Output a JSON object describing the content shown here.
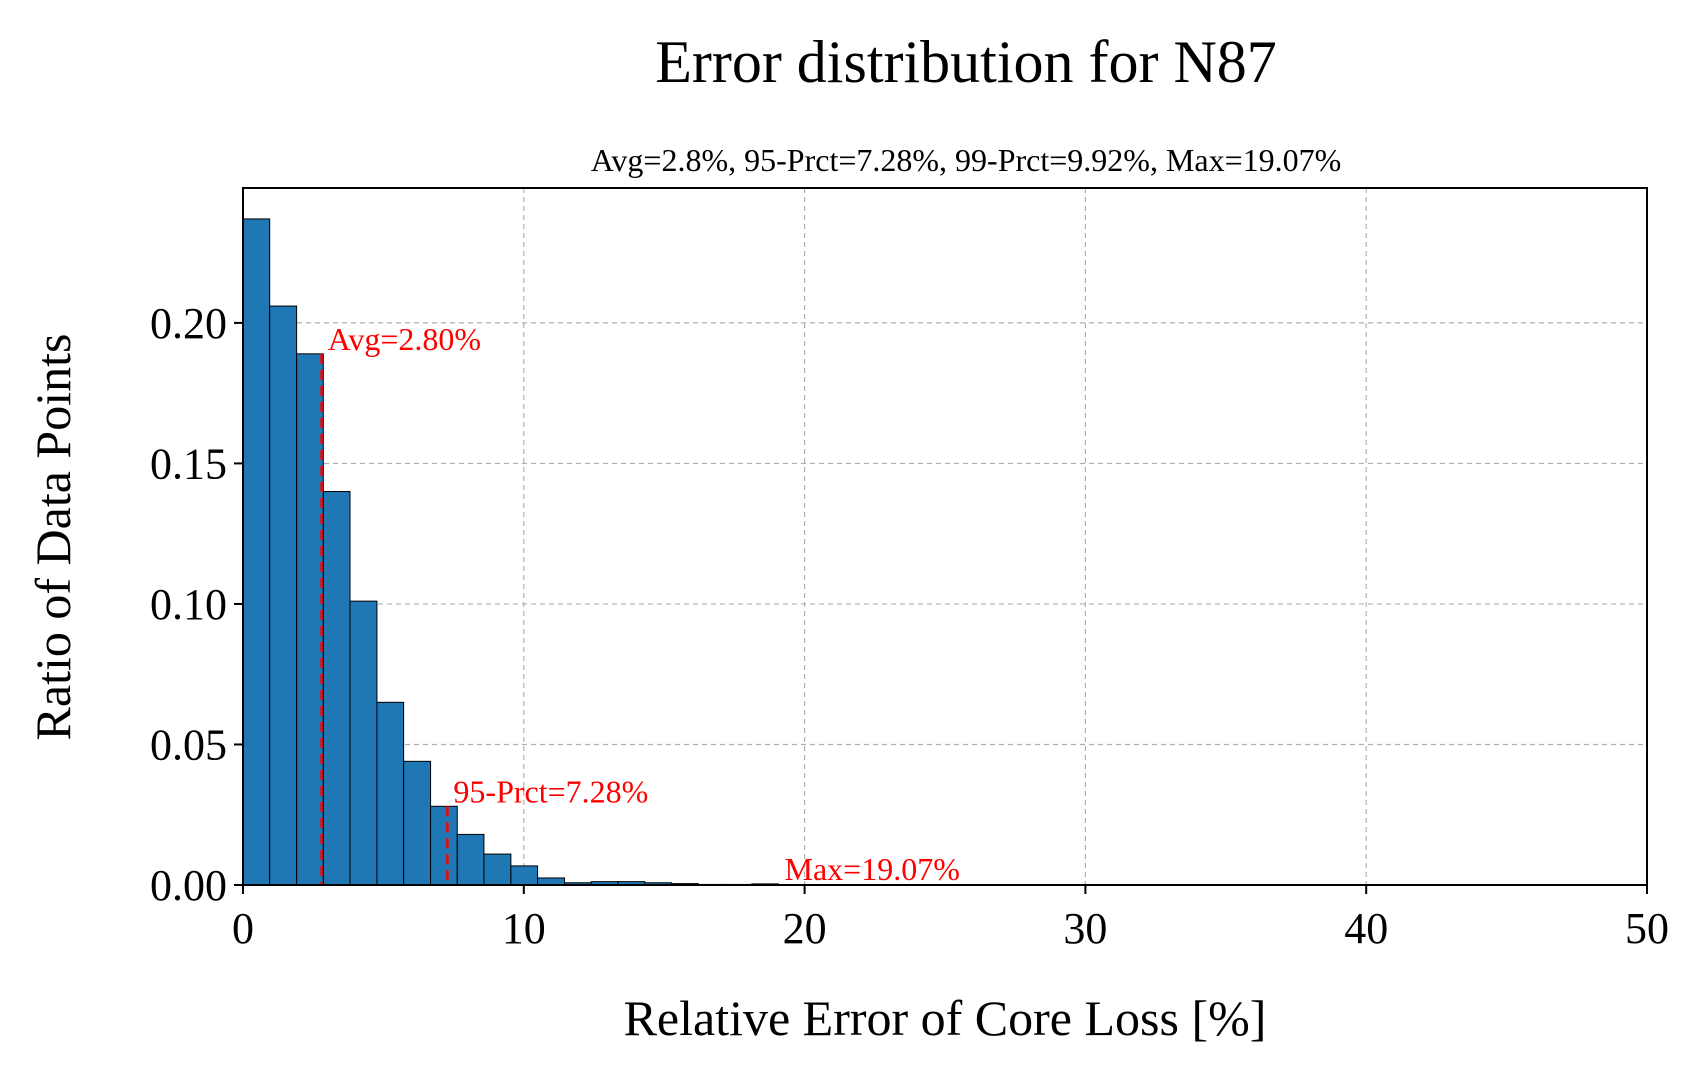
{
  "chart_data": {
    "type": "bar",
    "title": "Error distribution for N87",
    "subtitle": "Avg=2.8%, 95-Prct=7.28%, 99-Prct=9.92%, Max=19.07%",
    "xlabel": "Relative Error of Core Loss [%]",
    "ylabel": "Ratio of Data Points",
    "xlim": [
      0,
      50
    ],
    "ylim": [
      0,
      0.248
    ],
    "xticks": [
      0,
      10,
      20,
      30,
      40,
      50
    ],
    "xtick_labels": [
      "0",
      "10",
      "20",
      "30",
      "40",
      "50"
    ],
    "yticks": [
      0,
      0.05,
      0.1,
      0.15,
      0.2
    ],
    "ytick_labels": [
      "0.00",
      "0.05",
      "0.10",
      "0.15",
      "0.20"
    ],
    "grid": true,
    "bar_color": "#1f77b4",
    "bin_width": 0.95,
    "bins": [
      {
        "x0": 0.0,
        "x1": 0.95,
        "value": 0.237
      },
      {
        "x0": 0.95,
        "x1": 1.91,
        "value": 0.206
      },
      {
        "x0": 1.91,
        "x1": 2.86,
        "value": 0.189
      },
      {
        "x0": 2.86,
        "x1": 3.81,
        "value": 0.14
      },
      {
        "x0": 3.81,
        "x1": 4.77,
        "value": 0.101
      },
      {
        "x0": 4.77,
        "x1": 5.72,
        "value": 0.065
      },
      {
        "x0": 5.72,
        "x1": 6.68,
        "value": 0.044
      },
      {
        "x0": 6.68,
        "x1": 7.63,
        "value": 0.028
      },
      {
        "x0": 7.63,
        "x1": 8.58,
        "value": 0.018
      },
      {
        "x0": 8.58,
        "x1": 9.54,
        "value": 0.011
      },
      {
        "x0": 9.54,
        "x1": 10.49,
        "value": 0.0068
      },
      {
        "x0": 10.49,
        "x1": 11.45,
        "value": 0.0025
      },
      {
        "x0": 11.45,
        "x1": 12.4,
        "value": 0.0008
      },
      {
        "x0": 12.4,
        "x1": 13.35,
        "value": 0.0012
      },
      {
        "x0": 13.35,
        "x1": 14.31,
        "value": 0.0012
      },
      {
        "x0": 14.31,
        "x1": 15.26,
        "value": 0.0008
      },
      {
        "x0": 15.26,
        "x1": 16.21,
        "value": 0.0005
      },
      {
        "x0": 16.21,
        "x1": 17.17,
        "value": 0.0002
      },
      {
        "x0": 17.17,
        "x1": 18.12,
        "value": 0.0002
      },
      {
        "x0": 18.12,
        "x1": 19.07,
        "value": 0.0004
      }
    ],
    "annotations": [
      {
        "label": "Avg=2.80%",
        "x": 2.8,
        "color": "#ff0000",
        "line": true
      },
      {
        "label": "95-Prct=7.28%",
        "x": 7.28,
        "color": "#ff0000",
        "line": true
      },
      {
        "label": "Max=19.07%",
        "x": 19.07,
        "color": "#ff0000",
        "line": false
      }
    ]
  }
}
